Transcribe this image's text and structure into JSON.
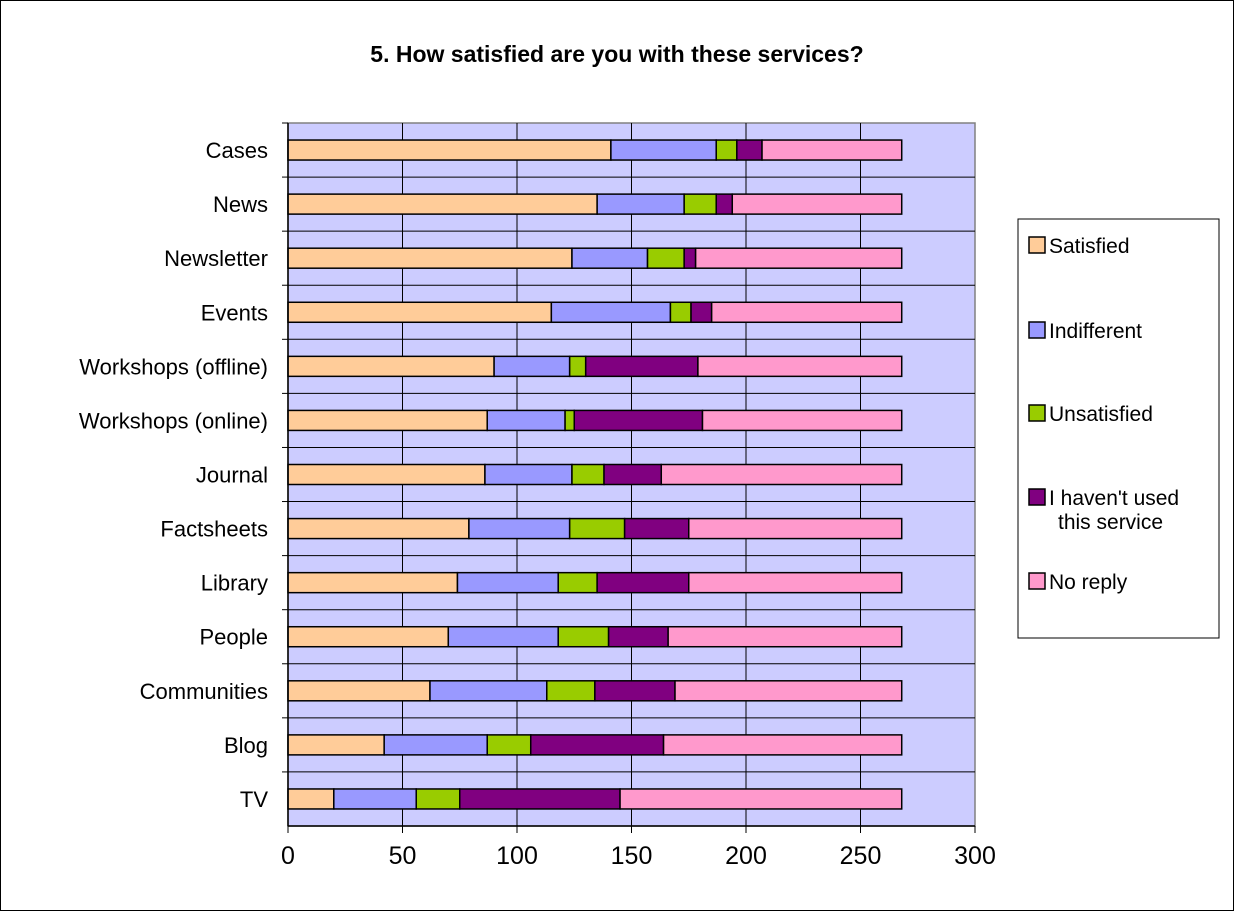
{
  "chart_data": {
    "type": "bar",
    "orientation": "horizontal",
    "stacked": true,
    "title": "5. How satisfied are you with these services?",
    "categories": [
      "Cases",
      "News",
      "Newsletter",
      "Events",
      "Workshops (offline)",
      "Workshops (online)",
      "Journal",
      "Factsheets",
      "Library",
      "People",
      "Communities",
      "Blog",
      "TV"
    ],
    "series": [
      {
        "name": "Satisfied",
        "color": "#FFCC99",
        "values": [
          141,
          135,
          124,
          115,
          90,
          87,
          86,
          79,
          74,
          70,
          62,
          42,
          20
        ]
      },
      {
        "name": "Indifferent",
        "color": "#9999FF",
        "values": [
          46,
          38,
          33,
          52,
          33,
          34,
          38,
          44,
          44,
          48,
          51,
          45,
          36
        ]
      },
      {
        "name": "Unsatisfied",
        "color": "#99CC00",
        "values": [
          9,
          14,
          16,
          9,
          7,
          4,
          14,
          24,
          17,
          22,
          21,
          19,
          19
        ]
      },
      {
        "name": "I haven't used this service",
        "color": "#800080",
        "values": [
          11,
          7,
          5,
          9,
          49,
          56,
          25,
          28,
          40,
          26,
          35,
          58,
          70
        ]
      },
      {
        "name": "No reply",
        "color": "#FF99CC",
        "values": [
          61,
          74,
          90,
          83,
          89,
          87,
          105,
          93,
          93,
          102,
          99,
          104,
          123
        ]
      }
    ],
    "xlim": [
      0,
      300
    ],
    "xticks": [
      "0",
      "50",
      "100",
      "150",
      "200",
      "250",
      "300"
    ],
    "xlabel": "",
    "ylabel": "",
    "grid": true,
    "plot_background": "#CCCCFF",
    "legend": {
      "position": "right",
      "entries": [
        "Satisfied",
        "Indifferent",
        "Unsatisfied",
        "I haven't used this service",
        "No reply"
      ]
    }
  }
}
